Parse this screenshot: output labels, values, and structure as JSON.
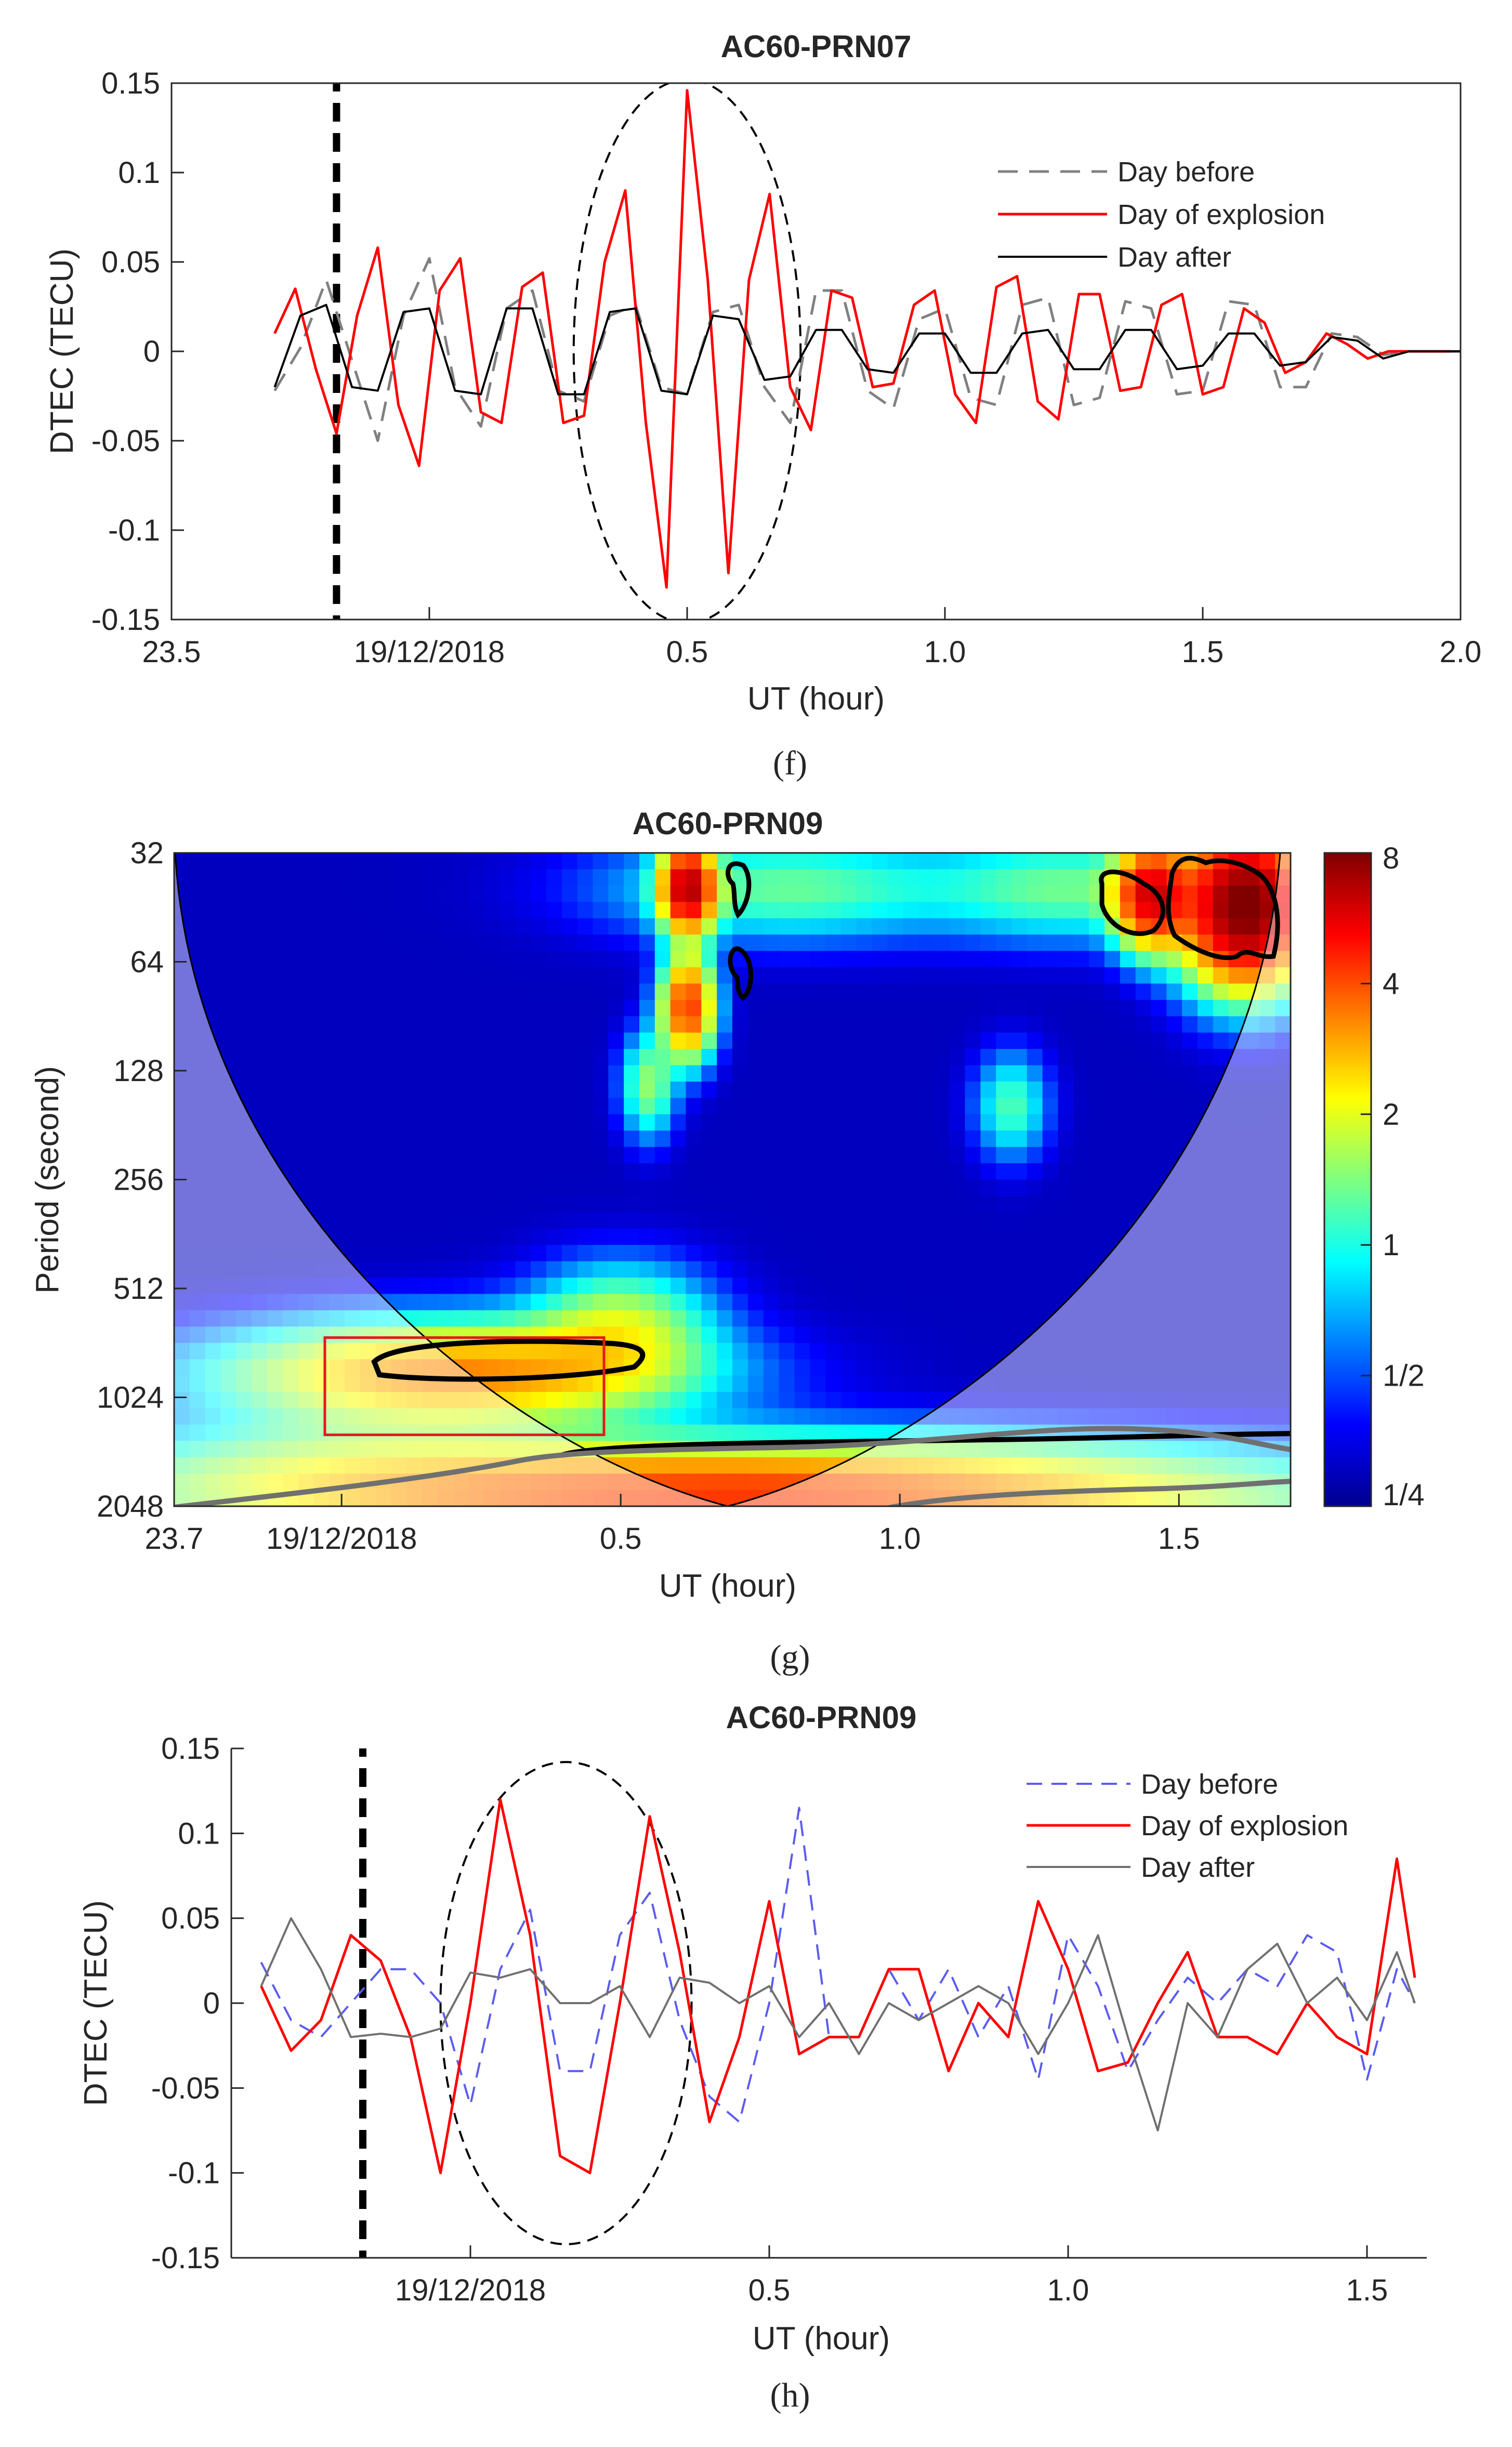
{
  "chart_data": [
    {
      "panel": "f",
      "type": "line",
      "title": "AC60-PRN07",
      "xlabel": "UT (hour)",
      "ylabel": "DTEC (TECU)",
      "xlim": [
        23.5,
        26.0
      ],
      "ylim": [
        -0.15,
        0.15
      ],
      "x_ticks": [
        {
          "value": 23.5,
          "label": "23.5"
        },
        {
          "value": 24.0,
          "label": "19/12/2018"
        },
        {
          "value": 24.5,
          "label": "0.5"
        },
        {
          "value": 25.0,
          "label": "1.0"
        },
        {
          "value": 25.5,
          "label": "1.5"
        },
        {
          "value": 26.0,
          "label": "2.0"
        }
      ],
      "y_ticks": [
        {
          "value": 0.15,
          "label": "0.15"
        },
        {
          "value": 0.1,
          "label": "0.1"
        },
        {
          "value": 0.05,
          "label": "0.05"
        },
        {
          "value": 0,
          "label": "0"
        },
        {
          "value": -0.05,
          "label": "-0.05"
        },
        {
          "value": -0.1,
          "label": "-0.1"
        },
        {
          "value": -0.15,
          "label": "-0.15"
        }
      ],
      "event_time": 23.82,
      "highlight_ellipse": {
        "x_center": 24.5,
        "y_center": 0.0,
        "x_radius": 0.22,
        "y_radius": 0.152
      },
      "legend": {
        "placement": "top-right",
        "entries": [
          "Day before",
          "Day of explosion",
          "Day after"
        ]
      },
      "series": [
        {
          "name": "Day before",
          "color": "#808080",
          "style": "dashed",
          "x": [
            23.7,
            23.75,
            23.8,
            23.85,
            23.9,
            23.95,
            24.0,
            24.05,
            24.1,
            24.15,
            24.2,
            24.25,
            24.3,
            24.35,
            24.4,
            24.45,
            24.5,
            24.55,
            24.6,
            24.65,
            24.7,
            24.75,
            24.8,
            24.85,
            24.9,
            24.95,
            25.0,
            25.05,
            25.1,
            25.15,
            25.2,
            25.25,
            25.3,
            25.35,
            25.4,
            25.45,
            25.5,
            25.55,
            25.6,
            25.65,
            25.7,
            25.75,
            25.8,
            25.85,
            25.9,
            25.95,
            26.0
          ],
          "y": [
            -0.022,
            0.002,
            0.04,
            -0.005,
            -0.05,
            0.02,
            0.052,
            -0.02,
            -0.042,
            0.024,
            0.034,
            -0.022,
            -0.028,
            0.02,
            0.026,
            -0.02,
            -0.024,
            0.022,
            0.026,
            -0.02,
            -0.04,
            0.034,
            0.034,
            -0.022,
            -0.032,
            0.018,
            0.024,
            -0.026,
            -0.03,
            0.026,
            0.03,
            -0.03,
            -0.026,
            0.028,
            0.024,
            -0.024,
            -0.022,
            0.028,
            0.026,
            -0.02,
            -0.02,
            0.01,
            0.008,
            -0.002,
            0.0,
            0.0,
            0.0
          ]
        },
        {
          "name": "Day of explosion",
          "color": "#ff0000",
          "style": "solid",
          "x": [
            23.7,
            23.74,
            23.78,
            23.82,
            23.86,
            23.9,
            23.94,
            23.98,
            24.02,
            24.06,
            24.1,
            24.14,
            24.18,
            24.22,
            24.26,
            24.3,
            24.34,
            24.38,
            24.42,
            24.46,
            24.5,
            24.54,
            24.58,
            24.62,
            24.66,
            24.7,
            24.74,
            24.78,
            24.82,
            24.86,
            24.9,
            24.94,
            24.98,
            25.02,
            25.06,
            25.1,
            25.14,
            25.18,
            25.22,
            25.26,
            25.3,
            25.34,
            25.38,
            25.42,
            25.46,
            25.5,
            25.54,
            25.58,
            25.62,
            25.66,
            25.7,
            25.74,
            25.78,
            25.82,
            25.86,
            25.9,
            25.94,
            25.98
          ],
          "y": [
            0.01,
            0.035,
            -0.01,
            -0.046,
            0.02,
            0.058,
            -0.03,
            -0.064,
            0.034,
            0.052,
            -0.034,
            -0.04,
            0.036,
            0.044,
            -0.04,
            -0.036,
            0.05,
            0.09,
            -0.04,
            -0.132,
            0.146,
            0.04,
            -0.124,
            0.04,
            0.088,
            -0.02,
            -0.044,
            0.034,
            0.03,
            -0.02,
            -0.018,
            0.026,
            0.034,
            -0.024,
            -0.04,
            0.036,
            0.042,
            -0.028,
            -0.038,
            0.032,
            0.032,
            -0.022,
            -0.02,
            0.026,
            0.032,
            -0.024,
            -0.02,
            0.024,
            0.016,
            -0.012,
            -0.006,
            0.01,
            0.004,
            -0.004,
            0.0,
            0.0,
            0.0,
            0.0
          ]
        },
        {
          "name": "Day after",
          "color": "#000000",
          "style": "solid",
          "x": [
            23.7,
            23.75,
            23.8,
            23.85,
            23.9,
            23.95,
            24.0,
            24.05,
            24.1,
            24.15,
            24.2,
            24.25,
            24.3,
            24.35,
            24.4,
            24.45,
            24.5,
            24.55,
            24.6,
            24.65,
            24.7,
            24.75,
            24.8,
            24.85,
            24.9,
            24.95,
            25.0,
            25.05,
            25.1,
            25.15,
            25.2,
            25.25,
            25.3,
            25.35,
            25.4,
            25.45,
            25.5,
            25.55,
            25.6,
            25.65,
            25.7,
            25.75,
            25.8,
            25.85,
            25.9,
            25.95,
            26.0
          ],
          "y": [
            -0.02,
            0.02,
            0.026,
            -0.02,
            -0.022,
            0.022,
            0.024,
            -0.022,
            -0.024,
            0.024,
            0.024,
            -0.024,
            -0.024,
            0.022,
            0.024,
            -0.022,
            -0.024,
            0.02,
            0.018,
            -0.016,
            -0.014,
            0.012,
            0.012,
            -0.01,
            -0.012,
            0.01,
            0.01,
            -0.012,
            -0.012,
            0.01,
            0.012,
            -0.01,
            -0.01,
            0.012,
            0.012,
            -0.01,
            -0.008,
            0.01,
            0.01,
            -0.008,
            -0.006,
            0.008,
            0.006,
            -0.004,
            0.0,
            0.0,
            0.0
          ]
        }
      ],
      "panel_label": "(f)"
    },
    {
      "panel": "g",
      "type": "heatmap",
      "title": "AC60-PRN09",
      "xlabel": "UT (hour)",
      "ylabel": "Period (second)",
      "xlim": [
        23.7,
        25.7
      ],
      "x_ticks": [
        {
          "value": 23.7,
          "label": "23.7"
        },
        {
          "value": 24.0,
          "label": "19/12/2018"
        },
        {
          "value": 24.5,
          "label": "0.5"
        },
        {
          "value": 25.0,
          "label": "1.0"
        },
        {
          "value": 25.5,
          "label": "1.5"
        }
      ],
      "y_scale": "log2",
      "ylim": [
        32,
        2048
      ],
      "y_ticks": [
        32,
        64,
        128,
        256,
        512,
        1024,
        2048
      ],
      "colorbar": {
        "scale": "log2",
        "range": [
          0.25,
          8
        ],
        "ticks": [
          "8",
          "4",
          "2",
          "1",
          "1/2",
          "1/4"
        ]
      },
      "background_power": 0.3,
      "power_blobs": [
        {
          "x": 24.62,
          "period": 40,
          "power": 6.0,
          "sx": 0.03,
          "sy": 0.25
        },
        {
          "x": 24.62,
          "period": 85,
          "power": 4.0,
          "sx": 0.03,
          "sy": 0.3
        },
        {
          "x": 24.55,
          "period": 140,
          "power": 1.2,
          "sx": 0.03,
          "sy": 0.3
        },
        {
          "x": 24.8,
          "period": 40,
          "power": 1.0,
          "sx": 0.2,
          "sy": 0.3
        },
        {
          "x": 25.3,
          "period": 40,
          "power": 1.0,
          "sx": 0.15,
          "sy": 0.3
        },
        {
          "x": 25.45,
          "period": 42,
          "power": 5.0,
          "sx": 0.04,
          "sy": 0.3
        },
        {
          "x": 25.62,
          "period": 45,
          "power": 8.0,
          "sx": 0.07,
          "sy": 0.45
        },
        {
          "x": 25.2,
          "period": 160,
          "power": 0.9,
          "sx": 0.04,
          "sy": 0.3
        },
        {
          "x": 24.2,
          "period": 880,
          "power": 3.0,
          "sx": 0.25,
          "sy": 0.3
        },
        {
          "x": 24.5,
          "period": 650,
          "power": 1.4,
          "sx": 0.1,
          "sy": 0.35
        },
        {
          "x": 24.7,
          "period": 1900,
          "power": 4.0,
          "sx": 0.6,
          "sy": 0.3
        },
        {
          "x": 24.0,
          "period": 1500,
          "power": 0.6,
          "sx": 0.25,
          "sy": 0.3
        }
      ],
      "significance_contours": [
        {
          "x_range": [
            24.0,
            24.45
          ],
          "period": 880
        },
        {
          "x_range": [
            24.35,
            25.7
          ],
          "period": 1450
        }
      ],
      "highlight_box": {
        "x_range": [
          23.97,
          24.47
        ],
        "period_range": [
          700,
          1300
        ],
        "color": "#e31a1c"
      },
      "panel_label": "(g)"
    },
    {
      "panel": "h",
      "type": "line",
      "title": "AC60-PRN09",
      "xlabel": "UT (hour)",
      "ylabel": "DTEC (TECU)",
      "xlim": [
        23.6,
        25.6
      ],
      "ylim": [
        -0.15,
        0.15
      ],
      "x_ticks": [
        {
          "value": 24.0,
          "label": "19/12/2018"
        },
        {
          "value": 24.5,
          "label": "0.5"
        },
        {
          "value": 25.0,
          "label": "1.0"
        },
        {
          "value": 25.5,
          "label": "1.5"
        }
      ],
      "y_ticks": [
        {
          "value": 0.15,
          "label": "0.15"
        },
        {
          "value": 0.1,
          "label": "0.1"
        },
        {
          "value": 0.05,
          "label": "0.05"
        },
        {
          "value": 0,
          "label": "0"
        },
        {
          "value": -0.05,
          "label": "-0.05"
        },
        {
          "value": -0.1,
          "label": "-0.1"
        },
        {
          "value": -0.15,
          "label": "-0.15"
        }
      ],
      "event_time": 23.82,
      "highlight_ellipse": {
        "x_center": 24.16,
        "y_center": 0.0,
        "x_radius": 0.21,
        "y_radius": 0.142
      },
      "legend": {
        "placement": "top-right",
        "entries": [
          "Day before",
          "Day of explosion",
          "Day after"
        ]
      },
      "series": [
        {
          "name": "Day before",
          "color": "#5b5bf0",
          "style": "dashed",
          "x": [
            23.65,
            23.7,
            23.75,
            23.8,
            23.85,
            23.9,
            23.95,
            24.0,
            24.05,
            24.1,
            24.15,
            24.2,
            24.25,
            24.3,
            24.35,
            24.4,
            24.45,
            24.5,
            24.55,
            24.6,
            24.65,
            24.7,
            24.75,
            24.8,
            24.85,
            24.9,
            24.95,
            25.0,
            25.05,
            25.1,
            25.15,
            25.2,
            25.25,
            25.3,
            25.35,
            25.4,
            25.45,
            25.5,
            25.55,
            25.58
          ],
          "y": [
            0.024,
            -0.01,
            -0.02,
            0.0,
            0.02,
            0.02,
            0.0,
            -0.06,
            0.02,
            0.055,
            -0.04,
            -0.04,
            0.04,
            0.065,
            -0.01,
            -0.055,
            -0.07,
            0.0,
            0.115,
            -0.02,
            -0.02,
            0.02,
            -0.01,
            0.02,
            -0.02,
            0.01,
            -0.045,
            0.04,
            0.01,
            -0.04,
            -0.01,
            0.015,
            0.0,
            0.02,
            0.01,
            0.04,
            0.03,
            -0.045,
            0.02,
            0.0
          ]
        },
        {
          "name": "Day of explosion",
          "color": "#ff0000",
          "style": "solid",
          "x": [
            23.65,
            23.7,
            23.75,
            23.8,
            23.85,
            23.9,
            23.95,
            24.0,
            24.05,
            24.1,
            24.15,
            24.2,
            24.25,
            24.3,
            24.35,
            24.4,
            24.45,
            24.5,
            24.55,
            24.6,
            24.65,
            24.7,
            24.75,
            24.8,
            24.85,
            24.9,
            24.95,
            25.0,
            25.05,
            25.1,
            25.15,
            25.2,
            25.25,
            25.3,
            25.35,
            25.4,
            25.45,
            25.5,
            25.55,
            25.58
          ],
          "y": [
            0.01,
            -0.028,
            -0.01,
            0.04,
            0.025,
            -0.02,
            -0.1,
            0.0,
            0.12,
            0.04,
            -0.09,
            -0.1,
            0.0,
            0.11,
            0.03,
            -0.07,
            -0.02,
            0.06,
            -0.03,
            -0.02,
            -0.02,
            0.02,
            0.02,
            -0.04,
            0.0,
            -0.02,
            0.06,
            0.02,
            -0.04,
            -0.035,
            0.0,
            0.03,
            -0.02,
            -0.02,
            -0.03,
            0.0,
            -0.02,
            -0.03,
            0.085,
            0.015
          ]
        },
        {
          "name": "Day after",
          "color": "#707070",
          "style": "solid",
          "x": [
            23.65,
            23.7,
            23.75,
            23.8,
            23.85,
            23.9,
            23.95,
            24.0,
            24.05,
            24.1,
            24.15,
            24.2,
            24.25,
            24.3,
            24.35,
            24.4,
            24.45,
            24.5,
            24.55,
            24.6,
            24.65,
            24.7,
            24.75,
            24.8,
            24.85,
            24.9,
            24.95,
            25.0,
            25.05,
            25.1,
            25.15,
            25.2,
            25.25,
            25.3,
            25.35,
            25.4,
            25.45,
            25.5,
            25.55,
            25.58
          ],
          "y": [
            0.01,
            0.05,
            0.02,
            -0.02,
            -0.018,
            -0.02,
            -0.015,
            0.018,
            0.015,
            0.02,
            0.0,
            0.0,
            0.01,
            -0.02,
            0.015,
            0.012,
            0.0,
            0.01,
            -0.02,
            0.0,
            -0.03,
            0.0,
            -0.01,
            0.0,
            0.01,
            0.0,
            -0.03,
            0.0,
            0.04,
            -0.02,
            -0.075,
            0.0,
            -0.02,
            0.02,
            0.035,
            0.0,
            0.015,
            -0.01,
            0.03,
            0.0
          ]
        }
      ],
      "panel_label": "(h)"
    }
  ]
}
